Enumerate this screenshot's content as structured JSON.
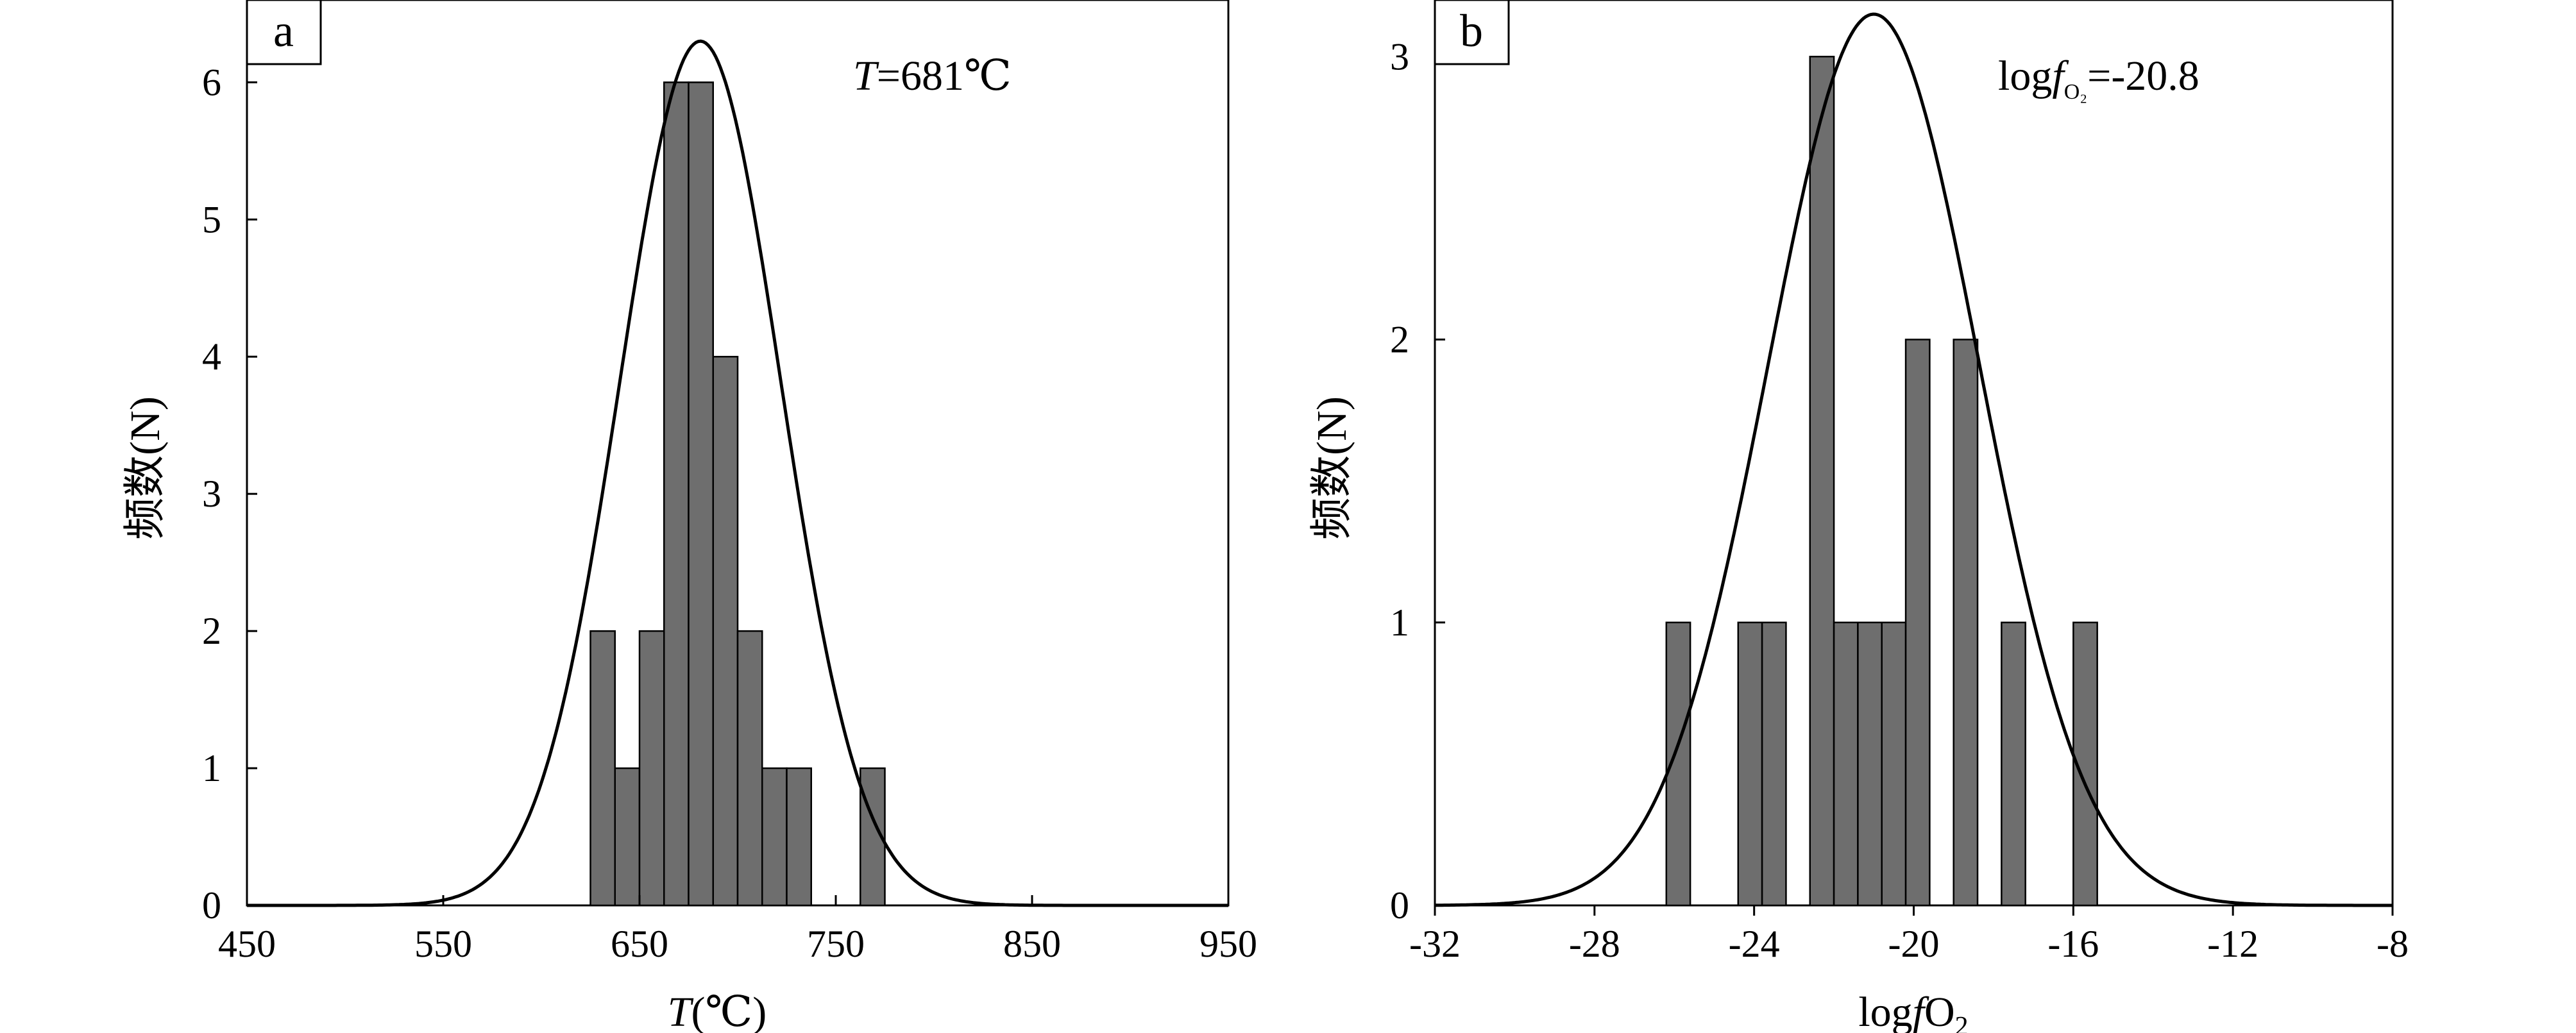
{
  "chart_data": [
    {
      "type": "bar",
      "panel_label": "a",
      "annotation": {
        "prefix": "T",
        "text": "=681℃"
      },
      "xlabel": {
        "prefix": "T",
        "text": "(℃)"
      },
      "ylabel": "频数(N)",
      "xlim": [
        450,
        950
      ],
      "ylim": [
        0,
        6.6
      ],
      "xticks": [
        "450",
        "550",
        "650",
        "750",
        "850",
        "950"
      ],
      "yticks": [
        "0",
        "1",
        "2",
        "3",
        "4",
        "5",
        "6"
      ],
      "bin_width": 12.5,
      "bins": [
        {
          "x0": 625,
          "value": 2
        },
        {
          "x0": 637.5,
          "value": 1
        },
        {
          "x0": 650,
          "value": 2
        },
        {
          "x0": 662.5,
          "value": 6
        },
        {
          "x0": 675,
          "value": 6
        },
        {
          "x0": 687.5,
          "value": 4
        },
        {
          "x0": 700,
          "value": 2
        },
        {
          "x0": 712.5,
          "value": 1
        },
        {
          "x0": 725,
          "value": 1
        },
        {
          "x0": 762.5,
          "value": 1
        }
      ],
      "fit_curve": {
        "type": "normal",
        "mean": 681,
        "sd": 41,
        "peak": 6.3
      }
    },
    {
      "type": "bar",
      "panel_label": "b",
      "annotation": {
        "prefix": "log",
        "f": "f",
        "sub": "O₂",
        "text": "=-20.8"
      },
      "xlabel": {
        "prefix": "log",
        "f": "f",
        "text": "O",
        "sub": "2"
      },
      "ylabel": "频数(N)",
      "xlim": [
        -32,
        -8
      ],
      "ylim": [
        0,
        3.2
      ],
      "xticks": [
        "-32",
        "-28",
        "-24",
        "-20",
        "-16",
        "-12",
        "-8"
      ],
      "yticks": [
        "0",
        "1",
        "2",
        "3"
      ],
      "bin_width": 0.6,
      "bins": [
        {
          "x0": -26.2,
          "value": 1
        },
        {
          "x0": -24.4,
          "value": 1
        },
        {
          "x0": -23.8,
          "value": 1
        },
        {
          "x0": -22.6,
          "value": 3
        },
        {
          "x0": -22.0,
          "value": 1
        },
        {
          "x0": -21.4,
          "value": 1
        },
        {
          "x0": -20.8,
          "value": 1
        },
        {
          "x0": -20.2,
          "value": 2
        },
        {
          "x0": -19.0,
          "value": 2
        },
        {
          "x0": -17.8,
          "value": 1
        },
        {
          "x0": -16.0,
          "value": 1
        }
      ],
      "fit_curve": {
        "type": "normal",
        "mean": -21.0,
        "sd": 2.65,
        "peak": 3.15
      }
    }
  ]
}
